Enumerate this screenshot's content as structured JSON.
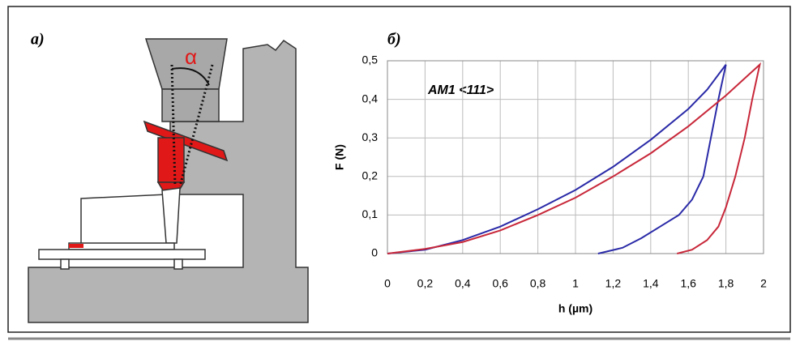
{
  "panels": {
    "left_label": "a)",
    "right_label": "б)",
    "angle_label": "α"
  },
  "chart_data": {
    "type": "line",
    "annotation": "AM1 <111>",
    "xlabel": "h (µm)",
    "ylabel": "F (N)",
    "xlim": [
      0,
      2
    ],
    "ylim": [
      0,
      0.5
    ],
    "xticks": [
      0,
      {
        "value": 0.2,
        "label": "0,2"
      },
      {
        "value": 0.4,
        "label": "0,4"
      },
      {
        "value": 0.6,
        "label": "0,6"
      },
      {
        "value": 0.8,
        "label": "0,8"
      },
      1,
      {
        "value": 1.2,
        "label": "1,2"
      },
      {
        "value": 1.4,
        "label": "1,4"
      },
      {
        "value": 1.6,
        "label": "1,6"
      },
      {
        "value": 1.8,
        "label": "1,8"
      },
      2
    ],
    "yticks": [
      0,
      {
        "value": 0.1,
        "label": "0,1"
      },
      {
        "value": 0.2,
        "label": "0,2"
      },
      {
        "value": 0.3,
        "label": "0,3"
      },
      {
        "value": 0.4,
        "label": "0,4"
      },
      {
        "value": 0.5,
        "label": "0,5"
      }
    ],
    "grid": true,
    "series": [
      {
        "color": "#2a2aa8",
        "x": [
          0,
          0.2,
          0.4,
          0.6,
          0.8,
          1.0,
          1.2,
          1.4,
          1.6,
          1.7,
          1.8,
          1.76,
          1.72,
          1.68,
          1.62,
          1.55,
          1.45,
          1.35,
          1.25,
          1.12
        ],
        "values": [
          0,
          0.01,
          0.035,
          0.07,
          0.115,
          0.165,
          0.225,
          0.295,
          0.375,
          0.425,
          0.49,
          0.4,
          0.3,
          0.2,
          0.14,
          0.1,
          0.07,
          0.04,
          0.015,
          0
        ]
      },
      {
        "color": "#c8283a",
        "x": [
          0,
          0.2,
          0.4,
          0.6,
          0.8,
          1.0,
          1.2,
          1.4,
          1.6,
          1.8,
          1.98,
          1.94,
          1.9,
          1.85,
          1.8,
          1.76,
          1.7,
          1.62,
          1.54
        ],
        "values": [
          0,
          0.012,
          0.03,
          0.06,
          0.1,
          0.145,
          0.2,
          0.26,
          0.33,
          0.41,
          0.49,
          0.4,
          0.3,
          0.2,
          0.12,
          0.07,
          0.035,
          0.01,
          0
        ]
      }
    ]
  }
}
